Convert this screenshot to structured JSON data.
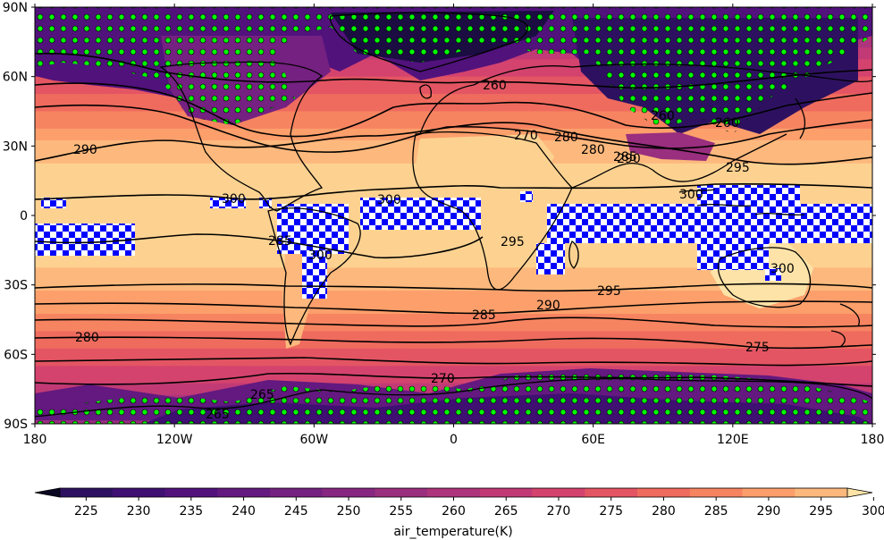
{
  "figure": {
    "lon_ticks": [
      "180",
      "120W",
      "60W",
      "0",
      "60E",
      "120E",
      "180"
    ],
    "lat_ticks": [
      "90N",
      "60N",
      "30N",
      "0",
      "30S",
      "60S",
      "90S"
    ]
  },
  "colorbar": {
    "label": "air_temperature(K)",
    "ticks": [
      "225",
      "230",
      "235",
      "240",
      "245",
      "250",
      "255",
      "260",
      "265",
      "270",
      "275",
      "280",
      "285",
      "290",
      "295",
      "300"
    ],
    "colors": [
      "#0a0722",
      "#1b0c42",
      "#2d1160",
      "#3f0f72",
      "#51127c",
      "#63197f",
      "#752181",
      "#872781",
      "#9a2e7f",
      "#ae347b",
      "#c13a75",
      "#d4436e",
      "#e45563",
      "#ef6b5e",
      "#f78461",
      "#fc9f6b",
      "#fdb97d",
      "#fdd291",
      "#fde3a7"
    ]
  },
  "contour_labels": [
    "290",
    "300",
    "300",
    "300",
    "295",
    "300",
    "290",
    "285",
    "280",
    "280",
    "270",
    "265",
    "275",
    "290",
    "295",
    "285",
    "270",
    "260",
    "265",
    "260",
    "300",
    "295",
    "285",
    "280",
    "260"
  ],
  "chart_data": {
    "type": "heatmap",
    "variable": "air_temperature",
    "units": "K",
    "xlim": [
      -180,
      180
    ],
    "ylim": [
      -90,
      90
    ],
    "contour_levels": [
      225,
      230,
      235,
      240,
      245,
      250,
      255,
      260,
      265,
      270,
      275,
      280,
      285,
      290,
      295,
      300
    ],
    "zonal_profile": [
      {
        "lat": 90,
        "value": 248
      },
      {
        "lat": 75,
        "value": 258
      },
      {
        "lat": 60,
        "value": 270
      },
      {
        "lat": 45,
        "value": 280
      },
      {
        "lat": 30,
        "value": 291
      },
      {
        "lat": 15,
        "value": 298
      },
      {
        "lat": 0,
        "value": 300
      },
      {
        "lat": -15,
        "value": 298
      },
      {
        "lat": -30,
        "value": 292
      },
      {
        "lat": -45,
        "value": 283
      },
      {
        "lat": -60,
        "value": 274
      },
      {
        "lat": -75,
        "value": 262
      },
      {
        "lat": -90,
        "value": 250
      }
    ],
    "overlays": {
      "stipple": "green dots",
      "hatch": "blue checkerboard"
    }
  }
}
